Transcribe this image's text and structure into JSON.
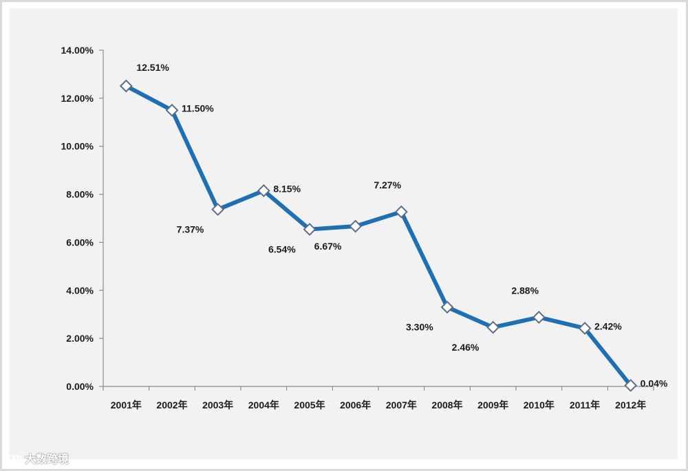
{
  "chart_data": {
    "type": "line",
    "categories": [
      "2001年",
      "2002年",
      "2003年",
      "2004年",
      "2005年",
      "2006年",
      "2007年",
      "2008年",
      "2009年",
      "2010年",
      "2011年",
      "2012年"
    ],
    "series": [
      {
        "values": [
          12.51,
          11.5,
          7.37,
          8.15,
          6.54,
          6.67,
          7.27,
          3.3,
          2.46,
          2.88,
          2.42,
          0.04
        ],
        "labels": [
          "12.51%",
          "11.50%",
          "7.37%",
          "8.15%",
          "6.54%",
          "6.67%",
          "7.27%",
          "3.30%",
          "2.46%",
          "2.88%",
          "2.42%",
          "0.04%"
        ],
        "label_positions": [
          "above-right",
          "right",
          "below",
          "right",
          "below",
          "below",
          "above",
          "below",
          "below",
          "above",
          "right",
          "right"
        ],
        "color": "#1f6fb5",
        "marker": "diamond",
        "marker_fill": "#ffffff",
        "marker_stroke": "#5a6e8a"
      }
    ],
    "yticks": [
      "0.00%",
      "2.00%",
      "4.00%",
      "6.00%",
      "8.00%",
      "10.00%",
      "12.00%",
      "14.00%"
    ],
    "ylim": [
      0,
      14
    ],
    "ytick_step": 2,
    "grid": false,
    "legend": "none",
    "title": "",
    "xlabel": "",
    "ylabel": ""
  },
  "watermark": {
    "text": "大数跨境",
    "icon": "dasuju-logo-icon"
  },
  "colors": {
    "background": "#f2f2f2",
    "frame": "#d9d9d9",
    "axis": "#8c8c8c"
  }
}
